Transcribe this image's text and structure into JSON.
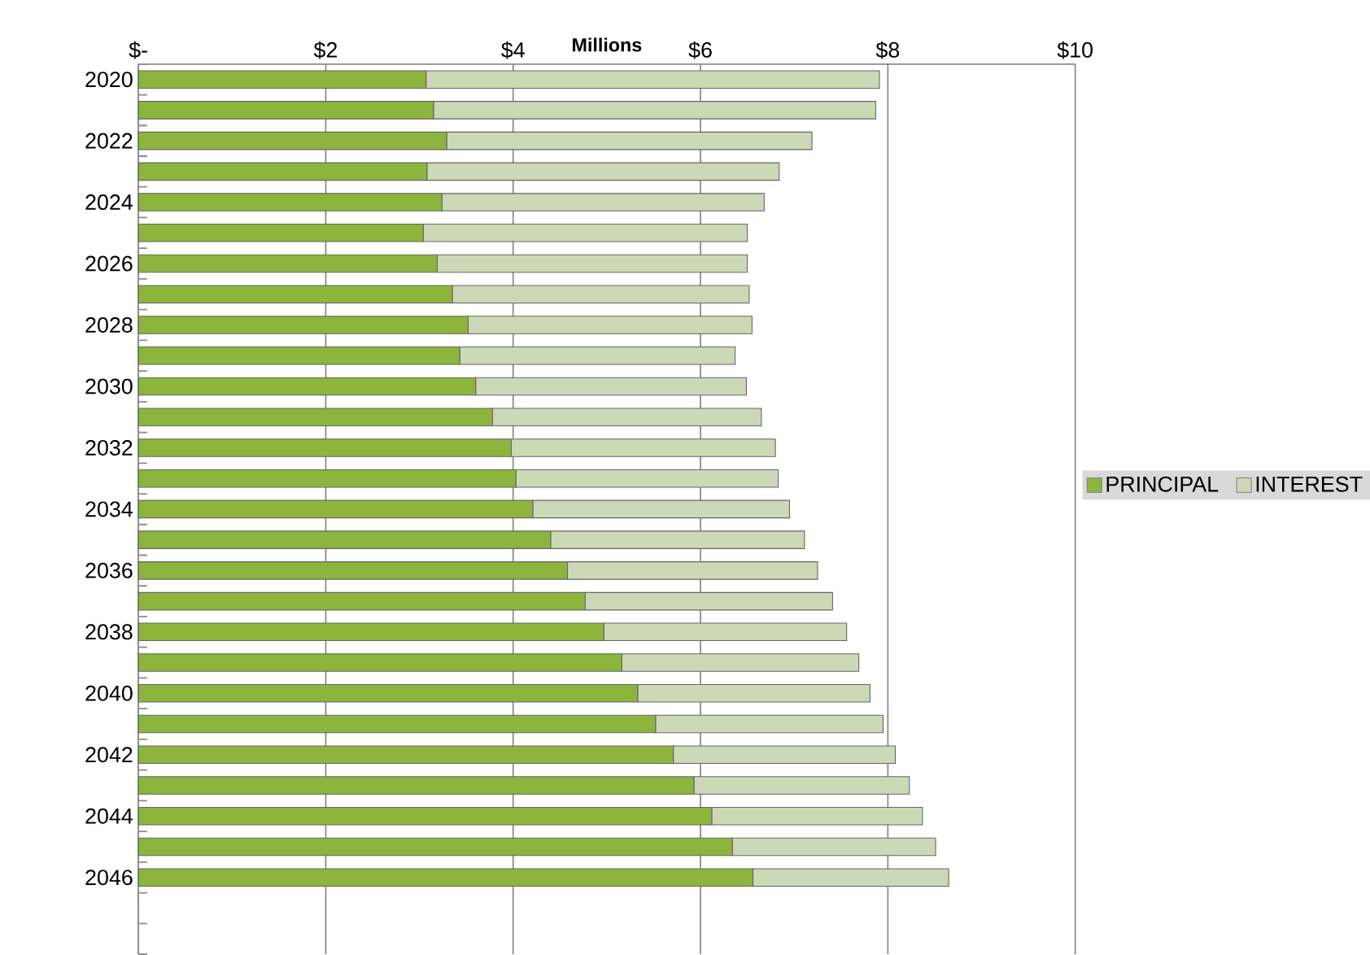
{
  "chart_data": {
    "type": "bar",
    "orientation": "horizontal",
    "stacked": true,
    "xlabel": "Millions",
    "categories": [
      "2020",
      null,
      "2022",
      null,
      "2024",
      null,
      "2026",
      null,
      "2028",
      null,
      "2030",
      null,
      "2032",
      null,
      "2034",
      null,
      "2036",
      null,
      "2038",
      null,
      "2040",
      null,
      "2042",
      null,
      "2044",
      null,
      "2046",
      null,
      null
    ],
    "series": [
      {
        "name": "PRINCIPAL",
        "color": "#8db43c",
        "values": [
          3.07,
          3.15,
          3.29,
          3.08,
          3.24,
          3.04,
          3.19,
          3.35,
          3.52,
          3.43,
          3.6,
          3.78,
          3.98,
          4.03,
          4.21,
          4.4,
          4.58,
          4.77,
          4.97,
          5.16,
          5.33,
          5.52,
          5.71,
          5.93,
          6.12,
          6.34,
          6.56,
          null,
          null
        ]
      },
      {
        "name": "INTEREST",
        "color": "#cdd8b6",
        "values": [
          4.84,
          4.72,
          3.9,
          3.76,
          3.44,
          3.46,
          3.31,
          3.17,
          3.03,
          2.94,
          2.89,
          2.87,
          2.82,
          2.8,
          2.74,
          2.71,
          2.67,
          2.64,
          2.59,
          2.53,
          2.48,
          2.43,
          2.37,
          2.3,
          2.25,
          2.17,
          2.09,
          null,
          null
        ]
      }
    ],
    "xlim": [
      0,
      10
    ],
    "xticks": [
      {
        "value": 0,
        "label": "$-"
      },
      {
        "value": 2,
        "label": "$2"
      },
      {
        "value": 4,
        "label": "$4"
      },
      {
        "value": 6,
        "label": "$6"
      },
      {
        "value": 8,
        "label": "$8"
      },
      {
        "value": 10,
        "label": "$10"
      }
    ],
    "grid": "x",
    "legend": "right"
  }
}
